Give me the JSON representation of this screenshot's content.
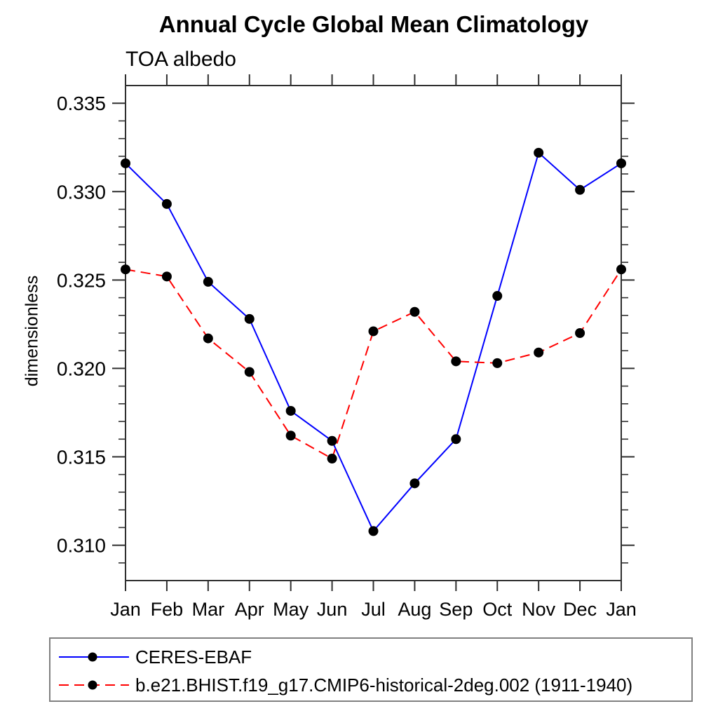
{
  "title": "Annual Cycle Global Mean Climatology",
  "subtitle": "TOA albedo",
  "ylabel": "dimensionless",
  "colors": {
    "obs_line": "#0000ff",
    "model_line": "#ff0000",
    "marker": "#000000",
    "axis": "#2f2f2f",
    "legend_border": "#808080",
    "background": "#ffffff"
  },
  "chart_data": {
    "type": "line",
    "title": "Annual Cycle Global Mean Climatology",
    "subtitle": "TOA albedo",
    "xlabel": "",
    "ylabel": "dimensionless",
    "categories": [
      "Jan",
      "Feb",
      "Mar",
      "Apr",
      "May",
      "Jun",
      "Jul",
      "Aug",
      "Sep",
      "Oct",
      "Nov",
      "Dec",
      "Jan"
    ],
    "series": [
      {
        "name": "CERES-EBAF",
        "color": "#0000ff",
        "line_style": "solid",
        "marker": "circle",
        "marker_color": "#000000",
        "values": [
          0.3316,
          0.3293,
          0.3249,
          0.3228,
          0.3176,
          0.3159,
          0.3108,
          0.3135,
          0.316,
          0.3241,
          0.3322,
          0.3301,
          0.3316
        ]
      },
      {
        "name": "b.e21.BHIST.f19_g17.CMIP6-historical-2deg.002 (1911-1940)",
        "color": "#ff0000",
        "line_style": "dashed",
        "marker": "circle",
        "marker_color": "#000000",
        "values": [
          0.3256,
          0.3252,
          0.3217,
          0.3198,
          0.3162,
          0.3149,
          0.3221,
          0.3232,
          0.3204,
          0.3203,
          0.3209,
          0.322,
          0.3256
        ]
      }
    ],
    "ylim": [
      0.308,
      0.336
    ],
    "yticks": [
      0.31,
      0.315,
      0.32,
      0.325,
      0.33,
      0.335
    ],
    "ytick_labels": [
      "0.310",
      "0.315",
      "0.320",
      "0.325",
      "0.330",
      "0.335"
    ],
    "minor_tick_step": 0.001,
    "grid": false,
    "ticks_direction": "out",
    "legend_position": "bottom-left"
  }
}
